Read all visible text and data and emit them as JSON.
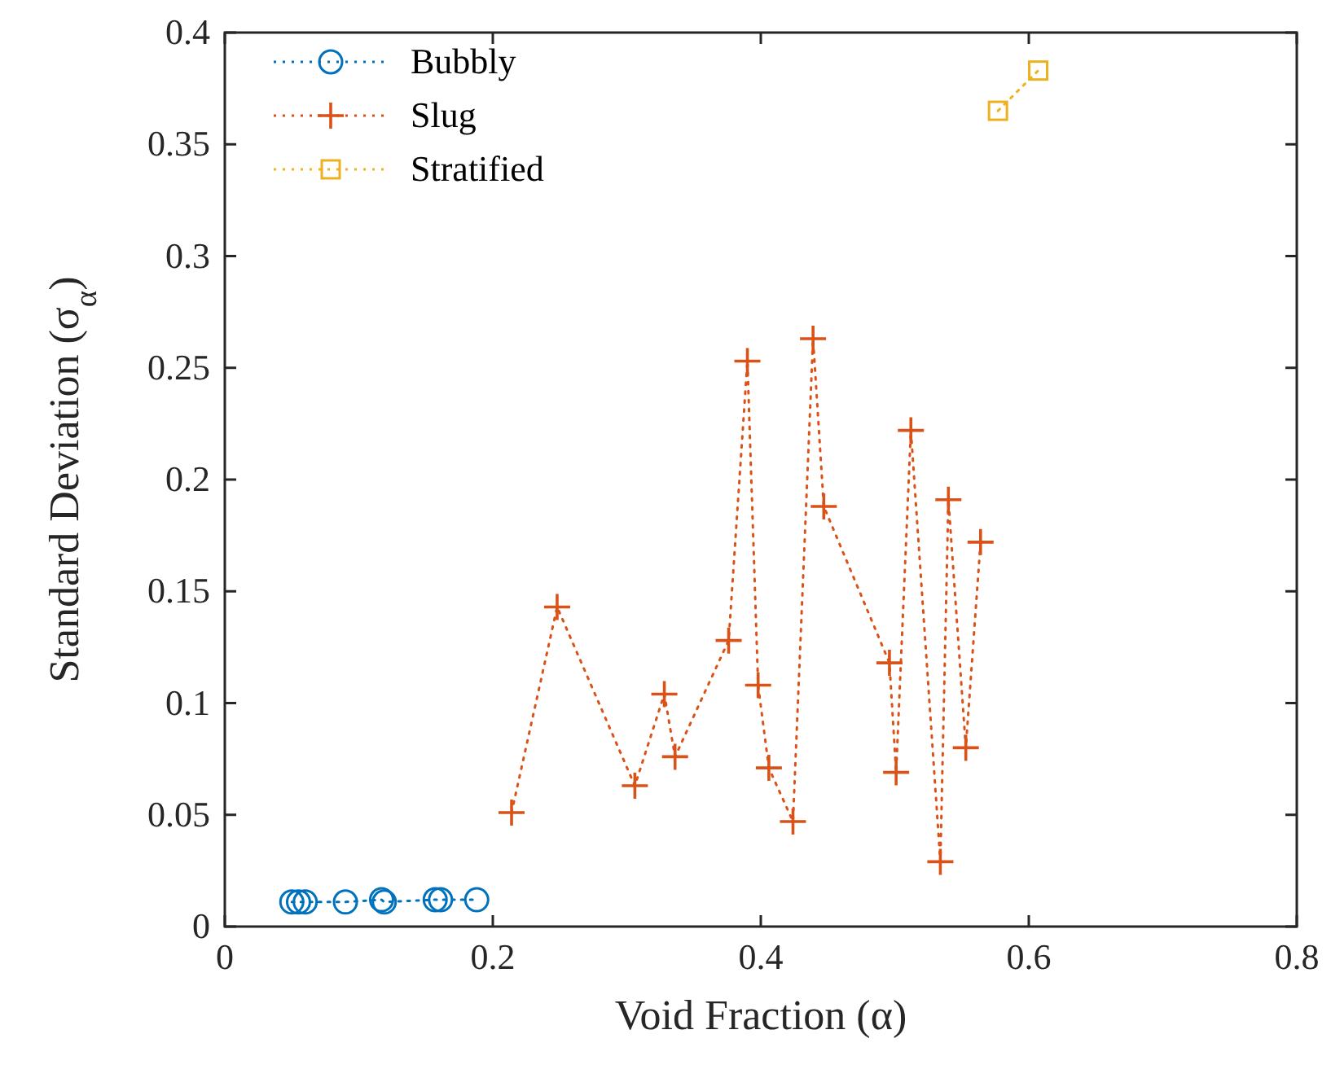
{
  "chart_data": {
    "type": "line",
    "xlabel": "Void Fraction (α)",
    "ylabel": "Standard Deviation (σ$_{α}$)",
    "xlim": [
      0,
      0.8
    ],
    "xticks": [
      0,
      0.2,
      0.4,
      0.6,
      0.8
    ],
    "ylim": [
      0,
      0.4
    ],
    "yticks": [
      0,
      0.05,
      0.1,
      0.15,
      0.2,
      0.25,
      0.3,
      0.35,
      0.4
    ],
    "grid": false,
    "legend": "top left",
    "line_style": "dotted",
    "series": [
      {
        "name": "Bubbly",
        "color": "#0072bd",
        "marker": "circle",
        "x": [
          0.05,
          0.055,
          0.06,
          0.09,
          0.117,
          0.119,
          0.157,
          0.161,
          0.188
        ],
        "values": [
          0.011,
          0.011,
          0.011,
          0.011,
          0.012,
          0.011,
          0.012,
          0.012,
          0.012
        ]
      },
      {
        "name": "Slug",
        "color": "#d95319",
        "marker": "cross",
        "x": [
          0.214,
          0.248,
          0.306,
          0.328,
          0.336,
          0.376,
          0.39,
          0.398,
          0.406,
          0.424,
          0.439,
          0.447,
          0.496,
          0.501,
          0.512,
          0.534,
          0.54,
          0.553,
          0.564
        ],
        "values": [
          0.051,
          0.143,
          0.063,
          0.104,
          0.076,
          0.128,
          0.253,
          0.108,
          0.071,
          0.047,
          0.263,
          0.188,
          0.118,
          0.069,
          0.222,
          0.029,
          0.191,
          0.08,
          0.172
        ]
      },
      {
        "name": "Stratified",
        "color": "#edb120",
        "marker": "square",
        "x": [
          0.577,
          0.607
        ],
        "values": [
          0.365,
          0.383
        ]
      }
    ]
  }
}
